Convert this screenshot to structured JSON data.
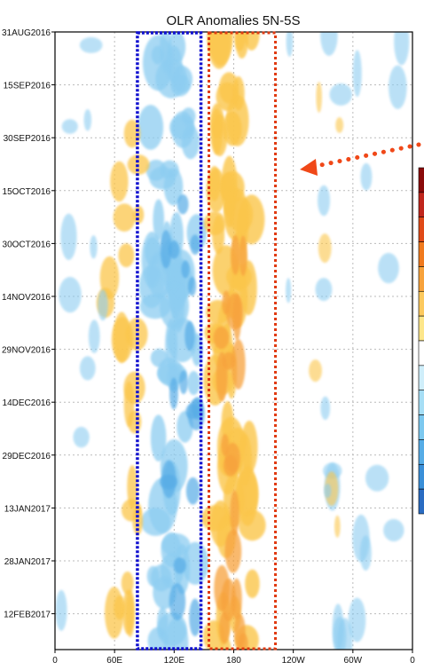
{
  "chart_data": {
    "type": "heatmap",
    "title": "OLR Anomalies 5N-5S",
    "xlabel": "",
    "ylabel": "",
    "x_ticks": [
      "0",
      "60E",
      "120E",
      "180",
      "120W",
      "60W",
      "0"
    ],
    "x_range_deg": [
      0,
      360
    ],
    "y_ticks": [
      "31AUG2016",
      "15SEP2016",
      "30SEP2016",
      "15OCT2016",
      "30OCT2016",
      "14NOV2016",
      "29NOV2016",
      "14DEC2016",
      "29DEC2016",
      "13JAN2017",
      "28JAN2017",
      "12FEB2017"
    ],
    "time_range": [
      "31AUG2016",
      "27FEB2017"
    ],
    "grid": true,
    "legend": "right (partially cropped colorbar)",
    "colorbar": [
      "#8a0a0a",
      "#c0261c",
      "#e04a18",
      "#f07a1e",
      "#f7a23c",
      "#fcc95e",
      "#fde68a",
      "#ffffff",
      "#cfeefa",
      "#a6def5",
      "#7cc8ef",
      "#56ace6",
      "#3a8fd8",
      "#2a6cc2"
    ],
    "annotations": {
      "blue_box_lon": [
        83,
        147
      ],
      "red_box_lon": [
        155,
        222
      ],
      "arrow": "red dotted arrow pointing left toward OCT2016"
    },
    "positive_color": "#fbc64c",
    "negative_color": "#8dcdf1"
  }
}
